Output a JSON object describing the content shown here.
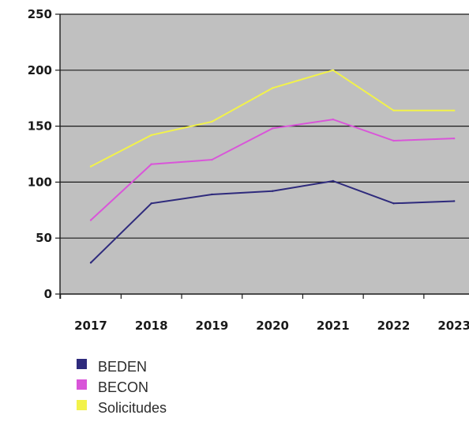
{
  "chart_data": {
    "type": "line",
    "categories": [
      "2017",
      "2018",
      "2019",
      "2020",
      "2021",
      "2022",
      "2023"
    ],
    "ylim": [
      0,
      250
    ],
    "yticks": [
      0,
      50,
      100,
      150,
      200,
      250
    ],
    "grid": true,
    "legend_position": "bottom-left",
    "plot_background": "#c0c0c0",
    "series": [
      {
        "name": "BEDEN",
        "color": "#2e2a7c",
        "values": [
          28,
          81,
          89,
          92,
          101,
          81,
          83
        ]
      },
      {
        "name": "BECON",
        "color": "#d955d9",
        "values": [
          66,
          116,
          120,
          148,
          156,
          137,
          139
        ]
      },
      {
        "name": "Solicitudes",
        "color": "#f2f24a",
        "values": [
          114,
          142,
          154,
          184,
          200,
          164,
          164
        ]
      }
    ]
  }
}
